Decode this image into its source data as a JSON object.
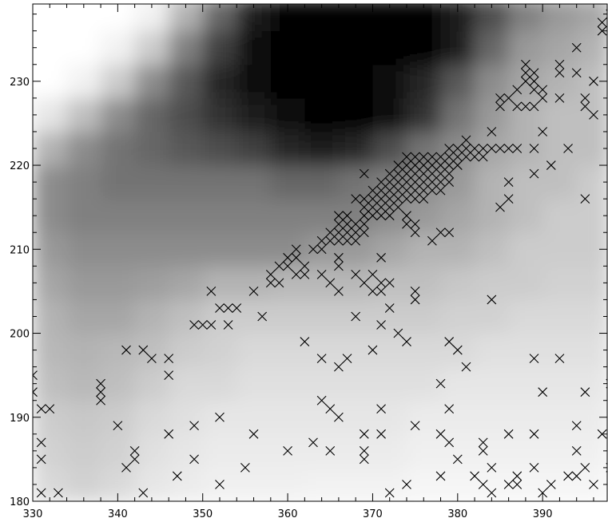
{
  "chart_data": {
    "type": "scatter",
    "color": "#000000",
    "xlim": [
      330,
      397.6
    ],
    "ylim": [
      180,
      239.2
    ],
    "xticks": [
      330,
      340,
      350,
      360,
      370,
      380,
      390
    ],
    "yticks": [
      180,
      190,
      200,
      210,
      220,
      230
    ],
    "xminorticks": [
      332,
      334,
      336,
      338,
      342,
      344,
      346,
      348,
      352,
      354,
      356,
      358,
      362,
      364,
      366,
      368,
      372,
      374,
      376,
      378,
      382,
      384,
      386,
      388,
      392,
      394,
      396
    ],
    "yminorticks": [
      182,
      184,
      186,
      188,
      192,
      194,
      196,
      198,
      202,
      204,
      206,
      208,
      212,
      214,
      216,
      218,
      222,
      224,
      226,
      228,
      232,
      234,
      236,
      238
    ],
    "image": {
      "x_edges": [
        330,
        334,
        338,
        342,
        346,
        350,
        354,
        358,
        362,
        366,
        370,
        374,
        378,
        382,
        386,
        390,
        394,
        398
      ],
      "y_edges": [
        180,
        184,
        188,
        192,
        196,
        200,
        204,
        208,
        212,
        216,
        220,
        224,
        228,
        232,
        236,
        240
      ],
      "values": [
        [
          0.85,
          0.82,
          0.85,
          0.9,
          0.92,
          0.94,
          0.94,
          0.94,
          0.95,
          0.95,
          0.95,
          0.96,
          0.96,
          0.96,
          0.96,
          0.96,
          0.96
        ],
        [
          0.82,
          0.8,
          0.82,
          0.88,
          0.9,
          0.92,
          0.92,
          0.92,
          0.92,
          0.92,
          0.92,
          0.94,
          0.94,
          0.94,
          0.94,
          0.94,
          0.94
        ],
        [
          0.8,
          0.78,
          0.8,
          0.85,
          0.88,
          0.9,
          0.9,
          0.9,
          0.9,
          0.9,
          0.9,
          0.92,
          0.92,
          0.92,
          0.92,
          0.92,
          0.92
        ],
        [
          0.75,
          0.72,
          0.75,
          0.8,
          0.85,
          0.85,
          0.88,
          0.88,
          0.88,
          0.88,
          0.88,
          0.88,
          0.9,
          0.9,
          0.9,
          0.9,
          0.9
        ],
        [
          0.72,
          0.7,
          0.72,
          0.75,
          0.8,
          0.82,
          0.85,
          0.85,
          0.85,
          0.85,
          0.85,
          0.85,
          0.85,
          0.88,
          0.88,
          0.88,
          0.88
        ],
        [
          0.7,
          0.65,
          0.65,
          0.7,
          0.75,
          0.8,
          0.8,
          0.8,
          0.8,
          0.8,
          0.8,
          0.8,
          0.82,
          0.82,
          0.85,
          0.85,
          0.85
        ],
        [
          0.65,
          0.6,
          0.6,
          0.62,
          0.65,
          0.7,
          0.7,
          0.72,
          0.72,
          0.72,
          0.75,
          0.75,
          0.78,
          0.8,
          0.8,
          0.82,
          0.82
        ],
        [
          0.6,
          0.55,
          0.55,
          0.55,
          0.55,
          0.55,
          0.55,
          0.55,
          0.6,
          0.6,
          0.65,
          0.7,
          0.7,
          0.75,
          0.8,
          0.8,
          0.8
        ],
        [
          0.55,
          0.5,
          0.5,
          0.5,
          0.5,
          0.5,
          0.5,
          0.5,
          0.5,
          0.5,
          0.55,
          0.6,
          0.65,
          0.7,
          0.75,
          0.8,
          0.8
        ],
        [
          0.55,
          0.5,
          0.45,
          0.45,
          0.45,
          0.45,
          0.45,
          0.4,
          0.4,
          0.45,
          0.5,
          0.55,
          0.6,
          0.7,
          0.75,
          0.75,
          0.8
        ],
        [
          0.7,
          0.55,
          0.45,
          0.4,
          0.35,
          0.3,
          0.25,
          0.15,
          0.1,
          0.15,
          0.3,
          0.45,
          0.55,
          0.65,
          0.7,
          0.75,
          0.75
        ],
        [
          0.9,
          0.75,
          0.55,
          0.4,
          0.3,
          0.2,
          0.1,
          0.05,
          0,
          0,
          0.05,
          0.2,
          0.45,
          0.6,
          0.7,
          0.75,
          0.75
        ],
        [
          1,
          0.95,
          0.8,
          0.55,
          0.35,
          0.15,
          0.05,
          0,
          0,
          0,
          0.05,
          0.15,
          0.35,
          0.55,
          0.65,
          0.7,
          0.75
        ],
        [
          1,
          1,
          0.95,
          0.8,
          0.5,
          0.25,
          0.05,
          0,
          0,
          0,
          0,
          0,
          0.1,
          0.4,
          0.6,
          0.65,
          0.7
        ],
        [
          1,
          1,
          1,
          0.95,
          0.7,
          0.4,
          0.1,
          0,
          0,
          0,
          0,
          0,
          0.1,
          0.3,
          0.5,
          0.6,
          0.65
        ]
      ]
    },
    "x": [
      330,
      330,
      331,
      332,
      331,
      331,
      331,
      333,
      338,
      338,
      338,
      340,
      341,
      341,
      342,
      342,
      343,
      343,
      344,
      346,
      346,
      346,
      347,
      349,
      349,
      349,
      350,
      351,
      351,
      352,
      352,
      352,
      353,
      353,
      354,
      355,
      356,
      356,
      357,
      358,
      358,
      359,
      359,
      360,
      360,
      360,
      361,
      361,
      361,
      362,
      362,
      362,
      363,
      363,
      364,
      364,
      364,
      364,
      365,
      365,
      365,
      366,
      366,
      366,
      366,
      366,
      367,
      368,
      368,
      369,
      369,
      369,
      369,
      370,
      370,
      370,
      371,
      371,
      371,
      371,
      371,
      371,
      372,
      372,
      372,
      373,
      374,
      374,
      375,
      375,
      375,
      377,
      378,
      378,
      378,
      378,
      379,
      379,
      379,
      379,
      380,
      380,
      381,
      382,
      383,
      383,
      383,
      384,
      384,
      384,
      386,
      386,
      387,
      387,
      389,
      389,
      389,
      390,
      390,
      391,
      392,
      393,
      394,
      394,
      394,
      395,
      395,
      396,
      397,
      398,
      398,
      364,
      365,
      365,
      366,
      366,
      366,
      366,
      367,
      367,
      367,
      367,
      368,
      368,
      368,
      368,
      369,
      369,
      369,
      369,
      369,
      369,
      370,
      370,
      370,
      370,
      371,
      371,
      371,
      371,
      371,
      372,
      372,
      372,
      372,
      372,
      372,
      373,
      373,
      373,
      373,
      373,
      373,
      374,
      374,
      374,
      374,
      374,
      374,
      374,
      374,
      375,
      375,
      375,
      375,
      375,
      375,
      375,
      375,
      376,
      376,
      376,
      376,
      376,
      376,
      377,
      377,
      377,
      377,
      377,
      378,
      378,
      378,
      378,
      378,
      379,
      379,
      379,
      379,
      379,
      380,
      380,
      380,
      381,
      381,
      381,
      382,
      382,
      383,
      383,
      384,
      384,
      385,
      385,
      385,
      385,
      386,
      386,
      386,
      386,
      387,
      387,
      387,
      388,
      388,
      388,
      388,
      389,
      389,
      389,
      389,
      389,
      389,
      390,
      390,
      390,
      391,
      392,
      392,
      392,
      393,
      394,
      394,
      395,
      395,
      395,
      396,
      396,
      397,
      397,
      398
    ],
    "y": [
      195,
      193,
      191,
      191,
      187,
      185,
      181,
      181,
      194,
      193,
      192,
      189,
      198,
      184,
      186,
      185,
      198,
      181,
      197,
      197,
      195,
      188,
      183,
      201,
      189,
      185,
      201,
      201,
      205,
      203,
      190,
      182,
      203,
      201,
      203,
      184,
      205,
      188,
      202,
      207,
      206,
      206,
      208,
      209,
      208,
      186,
      210,
      209,
      207,
      208,
      207,
      199,
      210,
      187,
      210,
      207,
      197,
      192,
      206,
      191,
      186,
      209,
      208,
      205,
      196,
      190,
      197,
      207,
      202,
      206,
      188,
      186,
      185,
      207,
      205,
      198,
      209,
      206,
      205,
      201,
      191,
      188,
      206,
      203,
      181,
      200,
      199,
      182,
      205,
      204,
      189,
      211,
      212,
      194,
      188,
      183,
      212,
      199,
      191,
      187,
      198,
      185,
      196,
      183,
      187,
      186,
      182,
      204,
      184,
      181,
      188,
      182,
      183,
      182,
      197,
      188,
      184,
      193,
      181,
      182,
      197,
      183,
      183,
      189,
      186,
      193,
      184,
      182,
      188,
      194,
      184,
      211,
      212,
      211,
      214,
      213,
      212,
      211,
      214,
      213,
      212,
      211,
      213,
      212,
      211,
      216,
      213,
      212,
      216,
      215,
      214,
      219,
      216,
      215,
      214,
      217,
      218,
      217,
      216,
      215,
      214,
      219,
      218,
      217,
      216,
      215,
      214,
      220,
      219,
      218,
      217,
      216,
      215,
      221,
      220,
      219,
      218,
      217,
      216,
      214,
      213,
      221,
      220,
      219,
      218,
      217,
      216,
      213,
      212,
      221,
      220,
      219,
      218,
      217,
      216,
      221,
      220,
      219,
      218,
      217,
      221,
      220,
      219,
      218,
      217,
      221,
      220,
      219,
      218,
      222,
      222,
      221,
      220,
      223,
      222,
      221,
      222,
      221,
      222,
      221,
      224,
      222,
      222,
      215,
      228,
      227,
      222,
      216,
      218,
      228,
      222,
      227,
      229,
      232,
      231,
      230,
      227,
      231,
      230,
      229,
      227,
      222,
      219,
      229,
      228,
      224,
      220,
      232,
      231,
      228,
      222,
      234,
      231,
      228,
      227,
      216,
      230,
      226,
      237,
      236,
      238
    ]
  }
}
